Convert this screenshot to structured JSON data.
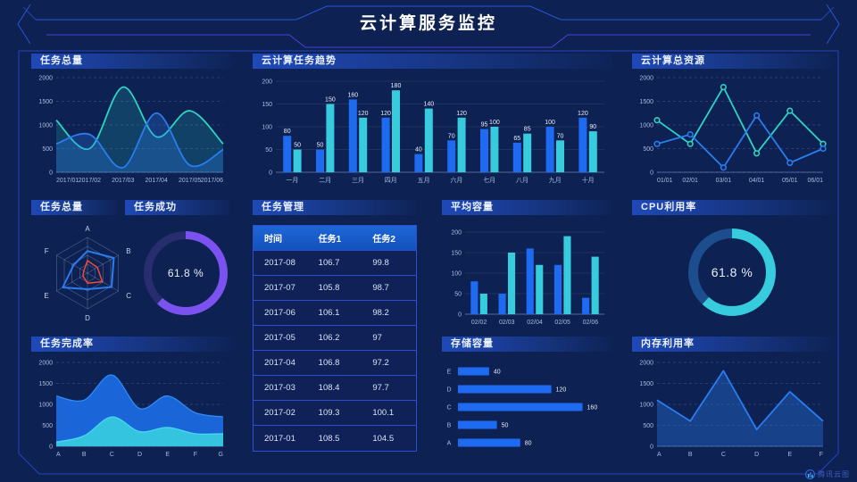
{
  "header": {
    "title": "云计算服务监控"
  },
  "footer": {
    "brand": "腾讯云图"
  },
  "colors": {
    "background": "#0D2152",
    "frame_line": "#2844BE",
    "accent_line": "#2B55D8",
    "accent_line_purple": "#4A43D8",
    "series_blue": "#1E6BF2",
    "series_cyan": "#36CBDD",
    "series_teal": "#2FD3C5",
    "radar_red": "#F5483B",
    "gauge_purple": "#7B52F0"
  },
  "panels": {
    "tasks_total": {
      "title": "任务总量"
    },
    "task_trend": {
      "title": "云计算任务趋势"
    },
    "total_resources": {
      "title": "云计算总资源"
    },
    "radar_panel": {
      "title": "任务总量"
    },
    "task_success": {
      "title": "任务成功",
      "value": "61.8 %"
    },
    "task_table": {
      "title": "任务管理",
      "columns": [
        "时间",
        "任务1",
        "任务2"
      ],
      "rows": [
        [
          "2017-08",
          "106.7",
          "99.8"
        ],
        [
          "2017-07",
          "105.8",
          "98.7"
        ],
        [
          "2017-06",
          "106.1",
          "98.2"
        ],
        [
          "2017-05",
          "106.2",
          "97"
        ],
        [
          "2017-04",
          "106.8",
          "97.2"
        ],
        [
          "2017-03",
          "108.4",
          "97.7"
        ],
        [
          "2017-02",
          "109.3",
          "100.1"
        ],
        [
          "2017-01",
          "108.5",
          "104.5"
        ]
      ]
    },
    "avg_capacity": {
      "title": "平均容量"
    },
    "cpu": {
      "title": "CPU利用率",
      "value": "61.8 %"
    },
    "completion": {
      "title": "任务完成率"
    },
    "storage": {
      "title": "存储容量"
    },
    "memory": {
      "title": "内存利用率"
    }
  },
  "chart_data": [
    {
      "id": "tasks_total",
      "type": "line",
      "title": "任务总量",
      "smooth": true,
      "markers": false,
      "grid": "dashed",
      "x": [
        "2017/01",
        "2017/02",
        "2017/03",
        "2017/04",
        "2017/05",
        "2017/06"
      ],
      "series": [
        {
          "name": "teal",
          "color": "#2FD3C5",
          "values": [
            1100,
            500,
            1800,
            750,
            1300,
            600
          ],
          "fill_opacity": 0.18
        },
        {
          "name": "blue",
          "color": "#2A7DF0",
          "values": [
            600,
            800,
            100,
            1250,
            150,
            480
          ],
          "fill_opacity": 0.28
        }
      ],
      "ylim": [
        0,
        2000
      ],
      "yticks": [
        0,
        500,
        1000,
        1500,
        2000
      ]
    },
    {
      "id": "task_trend",
      "type": "bar",
      "title": "云计算任务趋势",
      "categories": [
        "一月",
        "二月",
        "三月",
        "四月",
        "五月",
        "六月",
        "七月",
        "八月",
        "九月",
        "十月"
      ],
      "series": [
        {
          "name": "blue",
          "color": "#1E6BF2",
          "values": [
            80,
            50,
            160,
            120,
            40,
            70,
            95,
            65,
            100,
            120
          ]
        },
        {
          "name": "cyan",
          "color": "#36CBDD",
          "values": [
            50,
            150,
            120,
            180,
            140,
            120,
            100,
            85,
            70,
            90
          ]
        }
      ],
      "ylim": [
        0,
        200
      ],
      "yticks": [
        0,
        50,
        100,
        150,
        200
      ],
      "value_labels": true
    },
    {
      "id": "total_resources",
      "type": "line",
      "title": "云计算总资源",
      "smooth": false,
      "markers": true,
      "grid": "dashed",
      "x": [
        "01/01",
        "02/01",
        "03/01",
        "04/01",
        "05/01",
        "06/01"
      ],
      "series": [
        {
          "name": "teal",
          "color": "#2FD3C5",
          "values": [
            1100,
            600,
            1800,
            400,
            1300,
            600
          ]
        },
        {
          "name": "blue",
          "color": "#2A7DF0",
          "values": [
            600,
            800,
            100,
            1200,
            200,
            500
          ]
        }
      ],
      "ylim": [
        0,
        2000
      ],
      "yticks": [
        0,
        500,
        1000,
        1500,
        2000
      ]
    },
    {
      "id": "radar",
      "type": "radar",
      "title": "任务总量",
      "indicators": [
        "A",
        "B",
        "C",
        "D",
        "E",
        "F"
      ],
      "max": 100,
      "series": [
        {
          "name": "blue",
          "color": "#2A7DF0",
          "values": [
            62,
            85,
            78,
            45,
            80,
            45
          ]
        },
        {
          "name": "red",
          "color": "#F5483B",
          "values": [
            35,
            32,
            48,
            28,
            15,
            12
          ]
        }
      ]
    },
    {
      "id": "task_success_donut",
      "type": "donut",
      "title": "任务成功",
      "value": 61.8,
      "color": "#7B52F0",
      "track": "#272D6E",
      "stroke": 9
    },
    {
      "id": "avg_capacity",
      "type": "bar",
      "title": "平均容量",
      "categories": [
        "02/02",
        "02/03",
        "02/04",
        "02/05",
        "02/06"
      ],
      "series": [
        {
          "name": "blue",
          "color": "#1E6BF2",
          "values": [
            80,
            50,
            160,
            120,
            40
          ]
        },
        {
          "name": "cyan",
          "color": "#36CBDD",
          "values": [
            50,
            150,
            120,
            190,
            140
          ]
        }
      ],
      "ylim": [
        0,
        200
      ],
      "yticks": [
        0,
        50,
        100,
        150,
        200
      ],
      "value_labels": false
    },
    {
      "id": "cpu_donut",
      "type": "donut",
      "title": "CPU利用率",
      "value": 61.8,
      "color": "#36CBDD",
      "track": "#1C4D8E",
      "stroke": 11
    },
    {
      "id": "completion",
      "type": "area",
      "title": "任务完成率",
      "smooth": true,
      "grid": "dashed",
      "x": [
        "A",
        "B",
        "C",
        "D",
        "E",
        "F",
        "G"
      ],
      "series": [
        {
          "name": "blue",
          "color": "#1A66D9",
          "line": "#2E8BF5",
          "values": [
            1200,
            1100,
            1700,
            900,
            1200,
            800,
            700
          ],
          "fill_opacity": 1
        },
        {
          "name": "cyan",
          "color": "#35C4E0",
          "line": "#49D6EE",
          "values": [
            100,
            250,
            700,
            350,
            450,
            300,
            300
          ],
          "fill_opacity": 1
        }
      ],
      "ylim": [
        0,
        2000
      ],
      "yticks": [
        0,
        500,
        1000,
        1500,
        2000
      ]
    },
    {
      "id": "storage",
      "type": "hbar",
      "title": "存储容量",
      "items": [
        {
          "label": "E",
          "value": 40
        },
        {
          "label": "D",
          "value": 120
        },
        {
          "label": "C",
          "value": 160
        },
        {
          "label": "B",
          "value": 50
        },
        {
          "label": "A",
          "value": 80
        }
      ],
      "xmax": 172,
      "color": "#1E6BF2",
      "value_labels": true
    },
    {
      "id": "memory",
      "type": "line",
      "title": "内存利用率",
      "smooth": false,
      "markers": false,
      "grid": "dashed",
      "x": [
        "A",
        "B",
        "C",
        "D",
        "E",
        "F"
      ],
      "series": [
        {
          "name": "blue",
          "color": "#2A7DF0",
          "values": [
            1100,
            600,
            1800,
            400,
            1300,
            600
          ],
          "fill_opacity": 0.35
        }
      ],
      "ylim": [
        0,
        2000
      ],
      "yticks": [
        0,
        500,
        1000,
        1500,
        2000
      ]
    }
  ]
}
